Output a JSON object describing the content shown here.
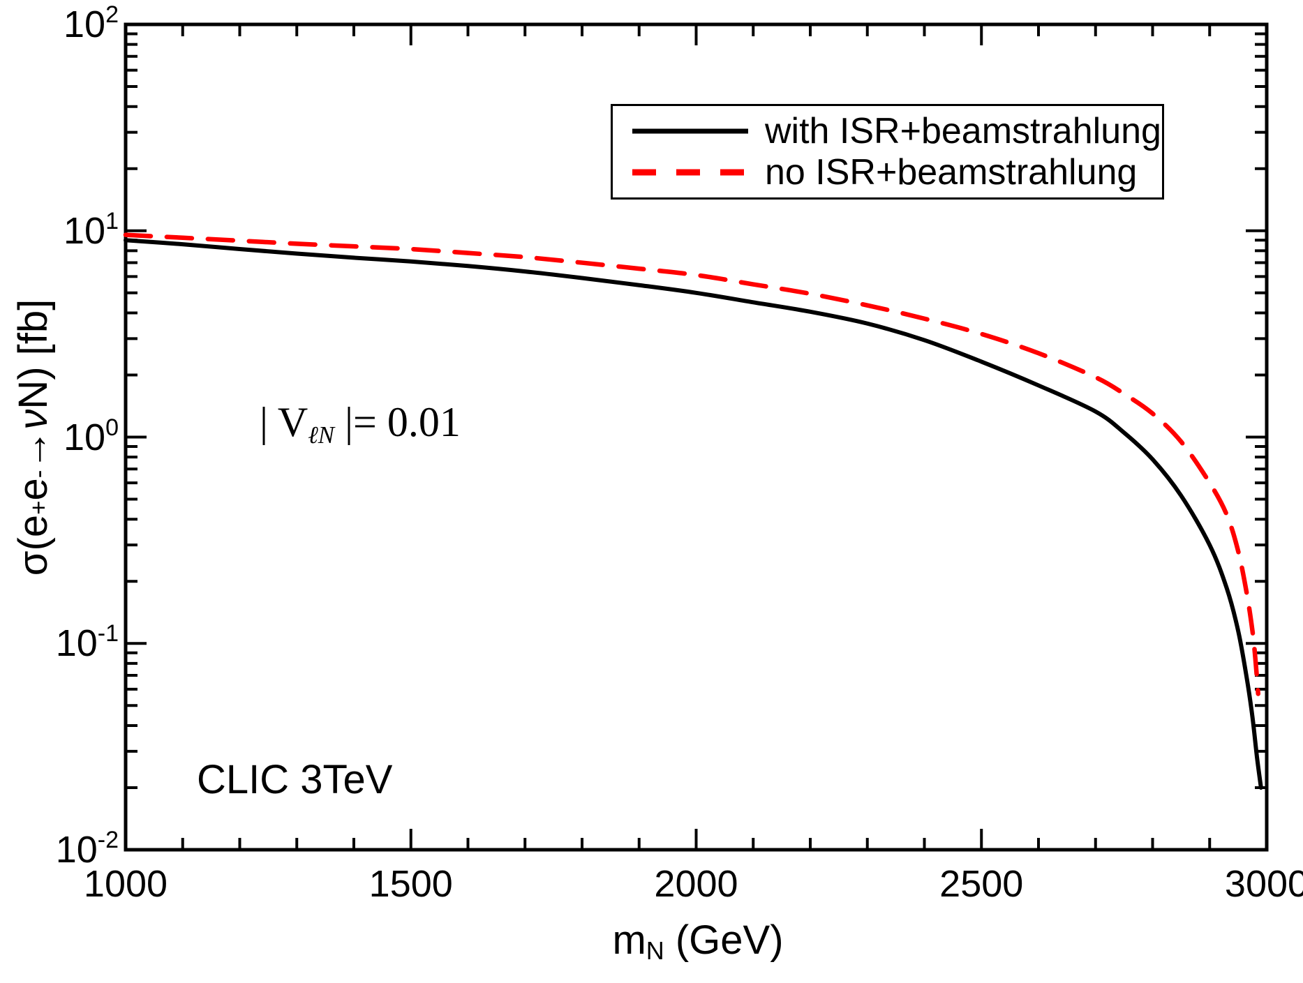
{
  "figure": {
    "background": "#ffffff",
    "frame_color": "#000000"
  },
  "chart_data": {
    "type": "line",
    "title": "",
    "y_scale": "log",
    "xlim": [
      1000,
      3000
    ],
    "ylim": [
      0.01,
      100
    ],
    "grid": "off",
    "legend_position": "top-right-inside",
    "axes": {
      "x": {
        "title_main": "m",
        "title_sub": "N",
        "title_rest": " (GeV)",
        "major_ticks": [
          1000,
          1500,
          2000,
          2500,
          3000
        ],
        "tick_labels": [
          "1000",
          "1500",
          "2000",
          "2500",
          "3000"
        ],
        "minor_step": 100
      },
      "y": {
        "title_p1": "σ(e",
        "title_sup1": "+",
        "title_p2": "e",
        "title_sup2": "-",
        "title_p3": "→",
        "title_nu": "ν",
        "title_p4": "N) [fb]",
        "tick_base": "10",
        "decade_exponents": [
          "2",
          "1",
          "0",
          "-1",
          "-2"
        ]
      }
    },
    "series": [
      {
        "name": "with ISR+beamstrahlung",
        "color": "#000000",
        "line_style": "solid",
        "points": [
          [
            1000,
            9.0
          ],
          [
            1100,
            8.6
          ],
          [
            1200,
            8.15
          ],
          [
            1300,
            7.75
          ],
          [
            1400,
            7.4
          ],
          [
            1500,
            7.1
          ],
          [
            1600,
            6.75
          ],
          [
            1700,
            6.35
          ],
          [
            1800,
            5.9
          ],
          [
            1900,
            5.45
          ],
          [
            2000,
            5.0
          ],
          [
            2100,
            4.5
          ],
          [
            2200,
            4.05
          ],
          [
            2300,
            3.55
          ],
          [
            2400,
            2.95
          ],
          [
            2500,
            2.32
          ],
          [
            2600,
            1.78
          ],
          [
            2700,
            1.33
          ],
          [
            2750,
            1.05
          ],
          [
            2800,
            0.78
          ],
          [
            2850,
            0.52
          ],
          [
            2900,
            0.3
          ],
          [
            2930,
            0.185
          ],
          [
            2950,
            0.115
          ],
          [
            2965,
            0.068
          ],
          [
            2975,
            0.044
          ],
          [
            2983,
            0.028
          ],
          [
            2990,
            0.02
          ]
        ]
      },
      {
        "name": "no ISR+beamstrahlung",
        "color": "#ff0000",
        "line_style": "dashed",
        "points": [
          [
            1000,
            9.55
          ],
          [
            1100,
            9.25
          ],
          [
            1200,
            8.95
          ],
          [
            1300,
            8.65
          ],
          [
            1400,
            8.4
          ],
          [
            1500,
            8.15
          ],
          [
            1600,
            7.8
          ],
          [
            1700,
            7.45
          ],
          [
            1800,
            7.0
          ],
          [
            1900,
            6.55
          ],
          [
            2000,
            6.1
          ],
          [
            2100,
            5.5
          ],
          [
            2200,
            4.95
          ],
          [
            2300,
            4.35
          ],
          [
            2400,
            3.75
          ],
          [
            2500,
            3.16
          ],
          [
            2600,
            2.55
          ],
          [
            2700,
            1.95
          ],
          [
            2750,
            1.62
          ],
          [
            2800,
            1.3
          ],
          [
            2850,
            0.95
          ],
          [
            2900,
            0.6
          ],
          [
            2930,
            0.42
          ],
          [
            2950,
            0.28
          ],
          [
            2965,
            0.175
          ],
          [
            2975,
            0.115
          ],
          [
            2980,
            0.085
          ],
          [
            2985,
            0.057
          ]
        ]
      }
    ],
    "annotations": {
      "coupling_prefix": "| V",
      "coupling_sub": "ℓN",
      "coupling_suffix": " |= 0.01",
      "collider_label": "CLIC 3TeV"
    }
  }
}
